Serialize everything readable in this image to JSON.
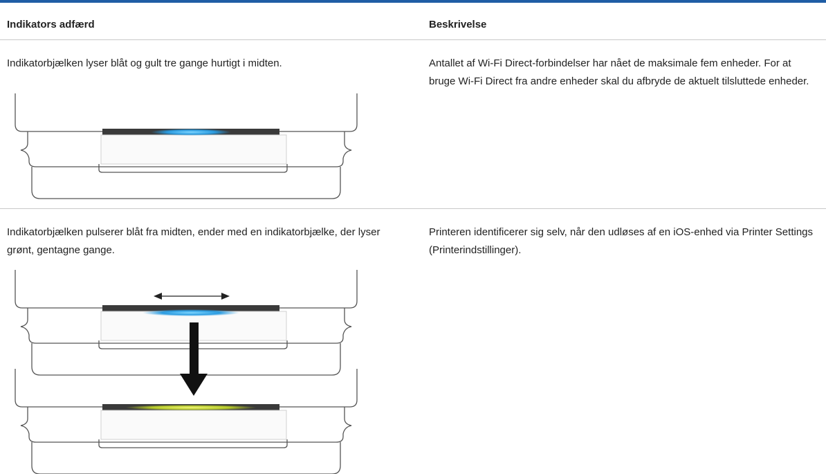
{
  "table": {
    "header": [
      "Indikators adfærd",
      "Beskrivelse"
    ],
    "rows": [
      [
        "Indikatorbjælken lyser blåt og gult tre gange hurtigt i midten.",
        "Antallet af Wi-Fi Direct-forbindelser har nået de maksimale fem enheder. For at bruge Wi-Fi Direct fra andre enheder skal du afbryde de aktuelt tilsluttede enheder."
      ],
      [
        "Indikatorbjælken pulserer blåt fra midten, ender med en indikatorbjælke, der lyser grønt, gentagne gange.",
        "Printeren identificerer sig selv, når den udløses af en iOS-enhed via Printer Settings (Printerindstillinger)."
      ]
    ]
  }
}
